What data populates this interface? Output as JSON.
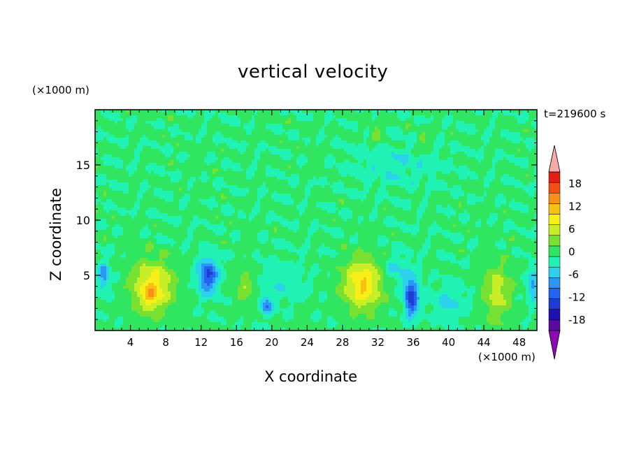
{
  "chart_data": {
    "type": "heatmap",
    "title": "vertical velocity",
    "xlabel": "X coordinate",
    "ylabel": "Z coordinate",
    "x_unit": "(×1000 m)",
    "y_unit": "(×1000 m)",
    "time_label": "t=219600 s",
    "xlim": [
      0,
      50
    ],
    "ylim": [
      0,
      20
    ],
    "x_ticks": [
      4,
      8,
      12,
      16,
      20,
      24,
      28,
      32,
      36,
      40,
      44,
      48
    ],
    "y_ticks": [
      5,
      10,
      15
    ],
    "grid": false,
    "colorbar": {
      "ticks": [
        18,
        12,
        6,
        0,
        -6,
        -12,
        -18
      ],
      "levels": [
        -21,
        -18,
        -15,
        -12,
        -9,
        -6,
        -3,
        0,
        3,
        6,
        9,
        12,
        15,
        18,
        21
      ],
      "colors": [
        "#5a0aa0",
        "#2010b4",
        "#1e3cd2",
        "#2264ee",
        "#2c96f4",
        "#2cd2ec",
        "#20f2b4",
        "#30e660",
        "#78e030",
        "#c8ee28",
        "#f6f018",
        "#f8c010",
        "#f8901a",
        "#f44e14",
        "#e41e10"
      ],
      "under_color": "#8c0ab4",
      "over_color": "#f6aaaa"
    },
    "background_value": 0.5,
    "features": [
      {
        "kind": "updraft",
        "x": 6.5,
        "z": 4.0,
        "peak": 11,
        "sx": 2.3,
        "sz": 2.3
      },
      {
        "kind": "updraft",
        "x": 6.2,
        "z": 3.0,
        "peak": 5,
        "sx": 0.8,
        "sz": 1.0
      },
      {
        "kind": "downdraft",
        "x": 12.8,
        "z": 5.0,
        "peak": -13,
        "sx": 1.1,
        "sz": 1.6
      },
      {
        "kind": "downdraft",
        "x": 1.0,
        "z": 5.0,
        "peak": -8,
        "sx": 0.7,
        "sz": 1.4
      },
      {
        "kind": "updraft",
        "x": 17.0,
        "z": 4.0,
        "peak": 5,
        "sx": 1.0,
        "sz": 1.6
      },
      {
        "kind": "downdraft",
        "x": 19.4,
        "z": 2.2,
        "peak": -9,
        "sx": 0.6,
        "sz": 0.8
      },
      {
        "kind": "downdraft",
        "x": 21.0,
        "z": 4.5,
        "peak": -3,
        "sx": 2.5,
        "sz": 2.0
      },
      {
        "kind": "updraft",
        "x": 30.3,
        "z": 4.2,
        "peak": 12,
        "sx": 2.2,
        "sz": 2.3
      },
      {
        "kind": "downdraft",
        "x": 35.8,
        "z": 3.0,
        "peak": -15,
        "sx": 0.8,
        "sz": 1.7
      },
      {
        "kind": "downdraft",
        "x": 34.0,
        "z": 5.5,
        "peak": -4,
        "sx": 1.5,
        "sz": 1.5
      },
      {
        "kind": "updraft",
        "x": 45.5,
        "z": 3.5,
        "peak": 7,
        "sx": 1.6,
        "sz": 2.5
      },
      {
        "kind": "downdraft",
        "x": 49.6,
        "z": 4.0,
        "peak": -7,
        "sx": 0.7,
        "sz": 1.5
      },
      {
        "kind": "downdraft",
        "x": 40.0,
        "z": 2.5,
        "peak": -4,
        "sx": 2.0,
        "sz": 1.5
      },
      {
        "kind": "downdraft",
        "x": 34.0,
        "z": 15.0,
        "peak": -3,
        "sx": 5.0,
        "sz": 2.0
      },
      {
        "kind": "updraft",
        "x": 31.8,
        "z": 17.8,
        "peak": 4,
        "sx": 0.8,
        "sz": 0.8
      },
      {
        "kind": "updraft",
        "x": 37.2,
        "z": 17.0,
        "peak": 4,
        "sx": 0.8,
        "sz": 0.9
      }
    ]
  }
}
